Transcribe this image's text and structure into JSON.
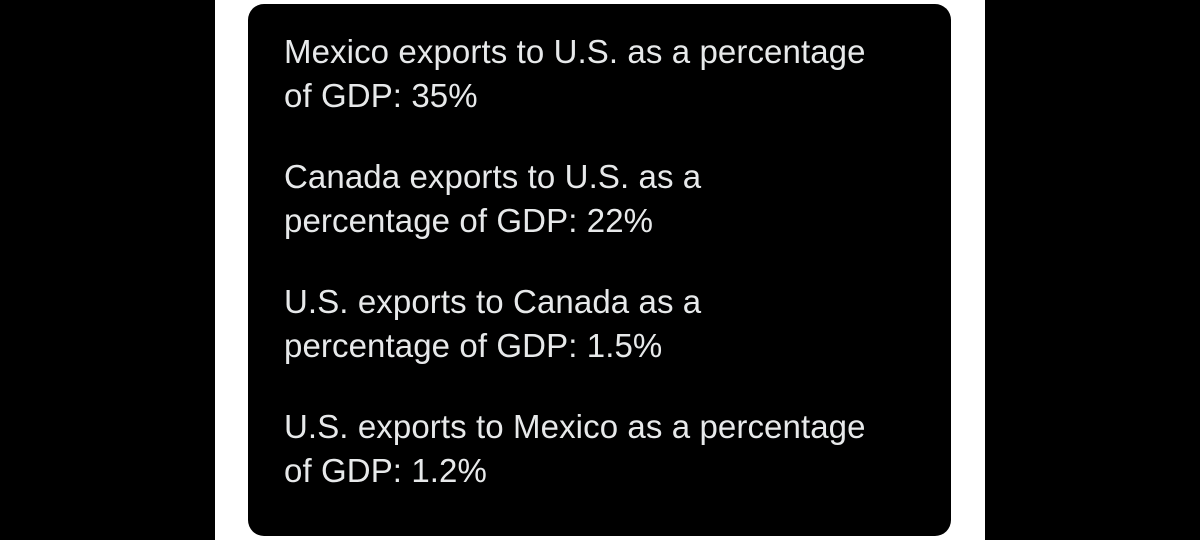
{
  "colors": {
    "background": "#000000",
    "panel": "#ffffff",
    "card": "#000000",
    "text": "#e7e9ea"
  },
  "stats": [
    {
      "line1": "Mexico exports to U.S. as a percentage",
      "line2": "of GDP: 35%"
    },
    {
      "line1": "Canada exports to U.S. as a",
      "line2": "percentage of GDP: 22%"
    },
    {
      "line1": "U.S. exports to Canada as a",
      "line2": "percentage of GDP: 1.5%"
    },
    {
      "line1": "U.S. exports to Mexico as a percentage",
      "line2": "of GDP: 1.2%"
    }
  ]
}
